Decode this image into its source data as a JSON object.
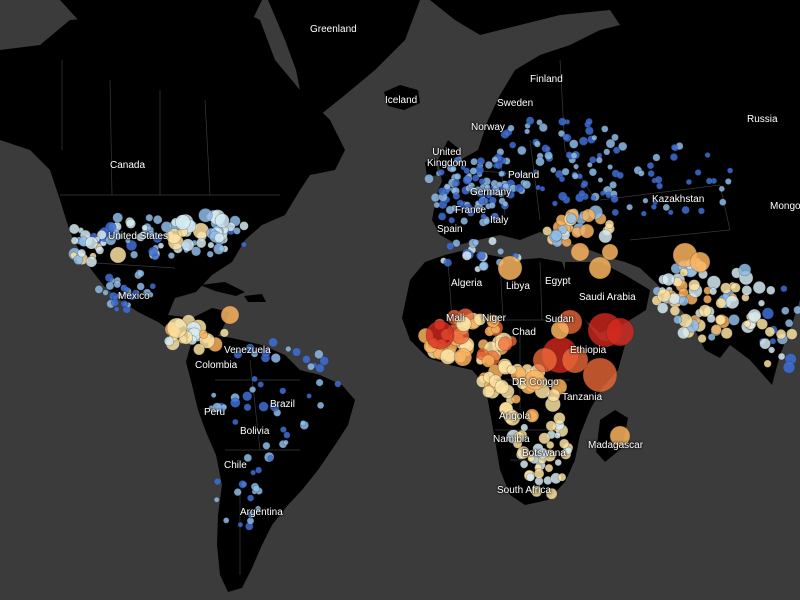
{
  "map": {
    "colors": {
      "water": "#3b3b3b",
      "land": "#000000",
      "border": "#3a3a3a",
      "label": "#ffffff",
      "dot_scale": [
        "#3f6fd6",
        "#8fbce8",
        "#d6ebf2",
        "#fde3a3",
        "#f9b35f",
        "#ef6a3a",
        "#d7291e"
      ]
    },
    "labels": {
      "greenland": "Greenland",
      "iceland": "Iceland",
      "finland": "Finland",
      "sweden": "Sweden",
      "norway": "Norway",
      "russia": "Russia",
      "canada": "Canada",
      "united_kingdom": "United\nKingdom",
      "poland": "Poland",
      "germany": "Germany",
      "france": "France",
      "italy": "Italy",
      "spain": "Spain",
      "kazakhstan": "Kazakhstan",
      "mongolia": "Mongolia",
      "united_states": "United States",
      "mexico": "Mexico",
      "algeria": "Algeria",
      "libya": "Libya",
      "egypt": "Egypt",
      "saudi_arabia": "Saudi Arabia",
      "mali": "Mali",
      "niger": "Niger",
      "chad": "Chad",
      "sudan": "Sudan",
      "ethiopia": "Ethiopia",
      "dr_congo": "DR Congo",
      "tanzania": "Tanzania",
      "angola": "Angola",
      "namibia": "Namibia",
      "botswana": "Botswana",
      "madagascar": "Madagascar",
      "south_africa": "South Africa",
      "venezuela": "Venezuela",
      "colombia": "Colombia",
      "peru": "Peru",
      "brazil": "Brazil",
      "bolivia": "Bolivia",
      "chile": "Chile",
      "argentina": "Argentina"
    }
  }
}
